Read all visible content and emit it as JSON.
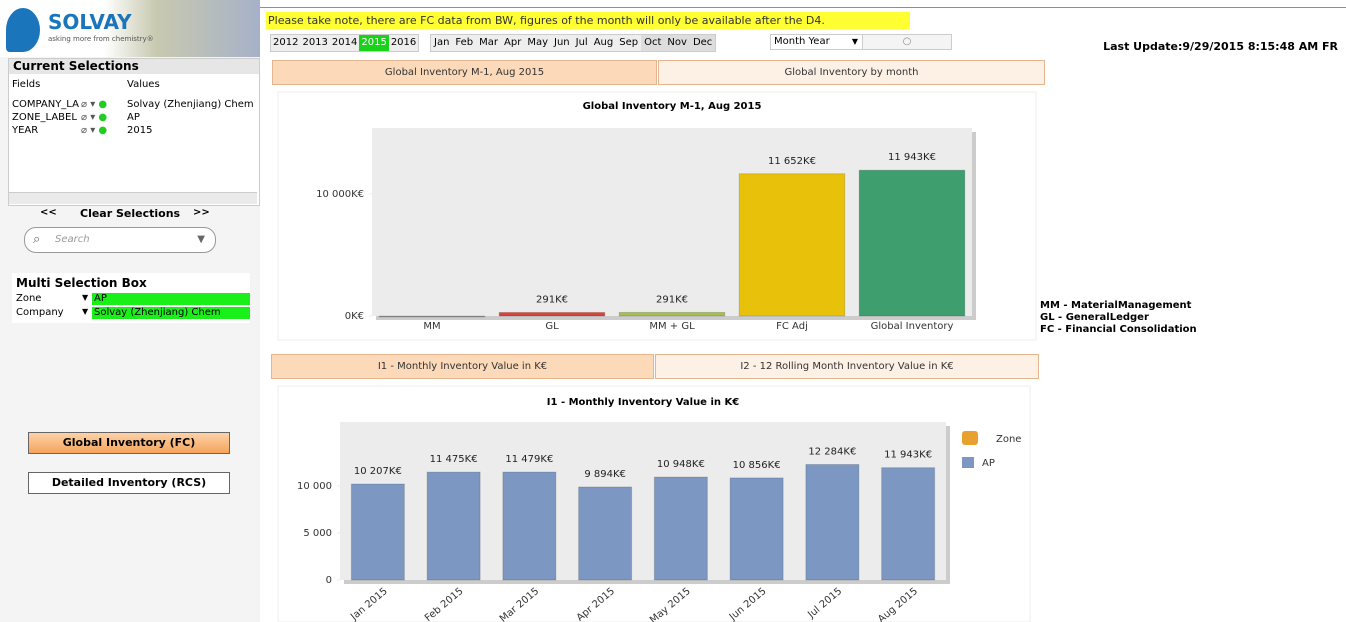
{
  "header": {
    "logo": "SOLVAY",
    "tagline": "asking more from chemistry®",
    "notice": "Please take note, there are FC data from BW, figures of the month will only be available after the D4.",
    "years": [
      "2012",
      "2013",
      "2014",
      "2015",
      "2016"
    ],
    "selected_year": 3,
    "months": [
      "Jan",
      "Feb",
      "Mar",
      "Apr",
      "May",
      "Jun",
      "Jul",
      "Aug",
      "Sep",
      "Oct",
      "Nov",
      "Dec"
    ],
    "dropdown": "Month Year",
    "last_update": "Last Update:9/29/2015 8:15:48 AM FR"
  },
  "current_selections": {
    "title": "Current Selections",
    "columns": [
      "Fields",
      "Values"
    ],
    "rows": [
      [
        "COMPANY_LA",
        "Solvay (Zhenjiang) Chem"
      ],
      [
        "ZONE_LABEL",
        "AP"
      ],
      [
        "YEAR",
        "2015"
      ]
    ],
    "prev": "<<",
    "clear": "Clear Selections",
    "next": ">>",
    "search": "Search"
  },
  "multi_selection": {
    "title": "Multi Selection Box",
    "rows": [
      [
        "Zone",
        "AP"
      ],
      [
        "Company",
        "Solvay (Zhenjiang) Chem"
      ]
    ]
  },
  "buttons": [
    "Global Inventory (FC)",
    "Detailed Inventory (RCS)"
  ],
  "tabs_top": [
    "Global Inventory M-1, Aug 2015",
    "Global Inventory by month"
  ],
  "tabs_bottom": [
    "I1 - Monthly Inventory Value in K€",
    "I2 - 12 Rolling Month Inventory Value in K€"
  ],
  "notes": [
    "MM - MaterialManagement",
    "GL - GeneralLedger",
    "FC - Financial Consolidation"
  ],
  "chart_data": [
    {
      "type": "bar",
      "title": "Global Inventory M-1, Aug 2015",
      "categories": [
        "MM",
        "GL",
        "MM + GL",
        "FC Adj",
        "Global Inventory"
      ],
      "values": [
        0,
        291,
        291,
        11652,
        11943
      ],
      "value_labels": [
        null,
        "291K€",
        "291K€",
        "11 652K€",
        "11 943K€"
      ],
      "colors": [
        "#999999",
        "#d9443a",
        "#a4bf4c",
        "#e8c20a",
        "#3f9e6e"
      ],
      "ylim": [
        0,
        15400
      ],
      "yticks": [
        {
          "value": 0,
          "label": "0K€"
        },
        {
          "value": 10000,
          "label": "10 000K€"
        }
      ]
    },
    {
      "type": "bar",
      "title": "I1 - Monthly Inventory Value in K€",
      "categories": [
        "Jan 2015",
        "Feb 2015",
        "Mar 2015",
        "Apr 2015",
        "May 2015",
        "Jun 2015",
        "Jul 2015",
        "Aug 2015"
      ],
      "values": [
        10207,
        11475,
        11479,
        9894,
        10948,
        10856,
        12284,
        11943
      ],
      "value_labels": [
        "10 207K€",
        "11 475K€",
        "11 479K€",
        "9 894K€",
        "10 948K€",
        "10 856K€",
        "12 284K€",
        "11 943K€"
      ],
      "color": "#7c98c2",
      "ylim": [
        0,
        16800
      ],
      "yticks": [
        0,
        {
          "value": 5000,
          "label": "5 000"
        },
        {
          "value": 10000,
          "label": "10 000"
        }
      ],
      "legend_title": "Zone",
      "series_name": "AP"
    }
  ]
}
